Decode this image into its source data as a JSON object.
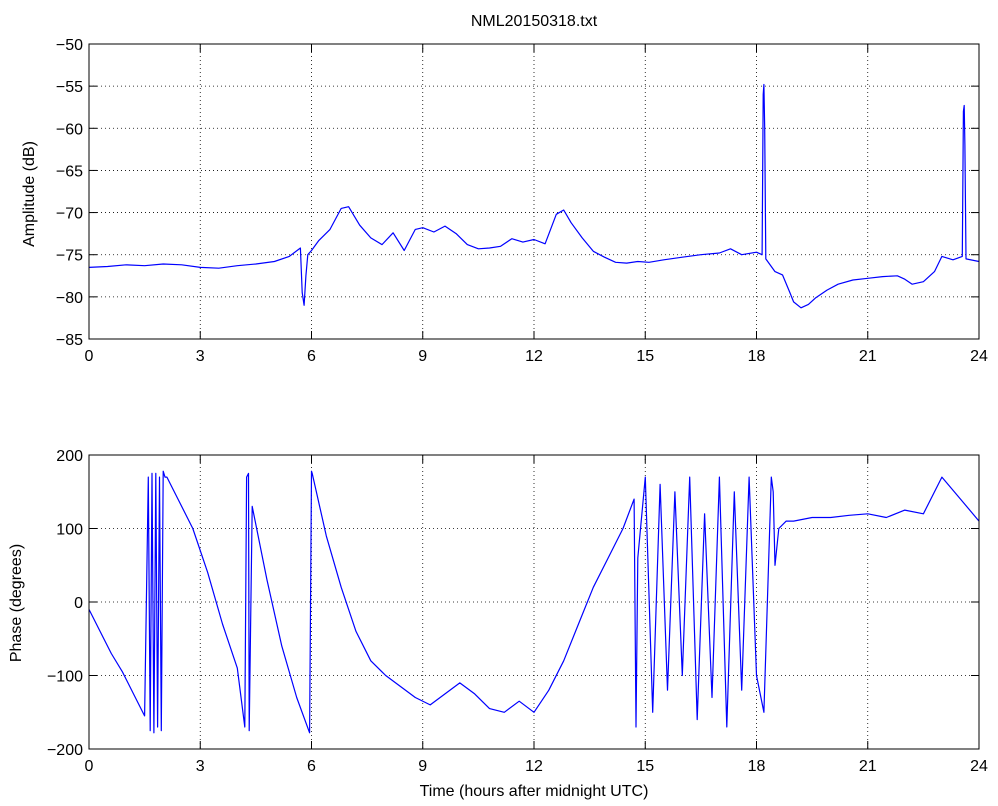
{
  "figure": {
    "title": "NML20150318.txt"
  },
  "chart_data": [
    {
      "type": "line",
      "title": "NML20150318.txt",
      "xlabel": "",
      "ylabel": "Amplitude (dB)",
      "xlim": [
        0,
        24
      ],
      "ylim": [
        -85,
        -50
      ],
      "xticks": [
        0,
        3,
        6,
        9,
        12,
        15,
        18,
        21,
        24
      ],
      "yticks": [
        -85,
        -80,
        -75,
        -70,
        -65,
        -60,
        -55,
        -50
      ],
      "xtick_labels": [
        "0",
        "3",
        "6",
        "9",
        "12",
        "15",
        "18",
        "21",
        "24"
      ],
      "ytick_labels": [
        "−85",
        "−80",
        "−75",
        "−70",
        "−65",
        "−60",
        "−55",
        "−50"
      ],
      "grid": true,
      "series": [
        {
          "color": "#0000ff",
          "x": [
            0,
            0.5,
            1,
            1.5,
            2,
            2.5,
            3,
            3.5,
            4,
            4.5,
            5,
            5.4,
            5.7,
            5.75,
            5.8,
            5.85,
            5.9,
            6.0,
            6.2,
            6.5,
            6.8,
            7.0,
            7.3,
            7.6,
            7.9,
            8.2,
            8.5,
            8.8,
            9.0,
            9.3,
            9.6,
            9.9,
            10.2,
            10.5,
            10.8,
            11.1,
            11.4,
            11.7,
            12.0,
            12.3,
            12.6,
            12.8,
            13.0,
            13.3,
            13.6,
            13.9,
            14.2,
            14.5,
            14.8,
            15.1,
            15.5,
            16.0,
            16.5,
            17.0,
            17.3,
            17.6,
            18.0,
            18.15,
            18.18,
            18.2,
            18.22,
            18.25,
            18.5,
            18.7,
            18.9,
            19.0,
            19.2,
            19.4,
            19.6,
            19.9,
            20.2,
            20.6,
            21.0,
            21.4,
            21.8,
            22.0,
            22.2,
            22.5,
            22.8,
            23.0,
            23.3,
            23.55,
            23.58,
            23.6,
            23.62,
            23.65,
            24
          ],
          "y": [
            -76.5,
            -76.4,
            -76.2,
            -76.3,
            -76.1,
            -76.2,
            -76.5,
            -76.6,
            -76.3,
            -76.1,
            -75.8,
            -75.2,
            -74.2,
            -79.5,
            -81.0,
            -77.5,
            -75.0,
            -74.5,
            -73.3,
            -72.0,
            -69.5,
            -69.3,
            -71.5,
            -73.0,
            -73.8,
            -72.4,
            -74.5,
            -72.0,
            -71.8,
            -72.3,
            -71.6,
            -72.5,
            -73.8,
            -74.3,
            -74.2,
            -74.0,
            -73.1,
            -73.5,
            -73.2,
            -73.7,
            -70.2,
            -69.7,
            -71.2,
            -73.0,
            -74.6,
            -75.3,
            -75.9,
            -76.0,
            -75.8,
            -75.9,
            -75.6,
            -75.3,
            -75.0,
            -74.8,
            -74.3,
            -75.0,
            -74.7,
            -75.0,
            -56.0,
            -54.8,
            -60.0,
            -75.5,
            -77.0,
            -77.4,
            -79.5,
            -80.6,
            -81.3,
            -80.9,
            -80.1,
            -79.2,
            -78.5,
            -78.0,
            -77.8,
            -77.6,
            -77.5,
            -77.9,
            -78.5,
            -78.2,
            -77.0,
            -75.2,
            -75.6,
            -75.2,
            -58.0,
            -57.3,
            -62.0,
            -75.5,
            -75.8
          ]
        }
      ]
    },
    {
      "type": "line",
      "title": "",
      "xlabel": "Time (hours after midnight UTC)",
      "ylabel": "Phase (degrees)",
      "xlim": [
        0,
        24
      ],
      "ylim": [
        -200,
        200
      ],
      "xticks": [
        0,
        3,
        6,
        9,
        12,
        15,
        18,
        21,
        24
      ],
      "yticks": [
        -200,
        -100,
        0,
        100,
        200
      ],
      "xtick_labels": [
        "0",
        "3",
        "6",
        "9",
        "12",
        "15",
        "18",
        "21",
        "24"
      ],
      "ytick_labels": [
        "−200",
        "−100",
        "0",
        "100",
        "200"
      ],
      "grid": true,
      "series": [
        {
          "color": "#0000ff",
          "x": [
            0,
            0.3,
            0.6,
            0.9,
            1.2,
            1.5,
            1.6,
            1.65,
            1.7,
            1.75,
            1.8,
            1.85,
            1.9,
            1.95,
            2.0,
            2.05,
            2.1,
            2.4,
            2.8,
            3.2,
            3.6,
            4.0,
            4.2,
            4.25,
            4.3,
            4.32,
            4.4,
            4.8,
            5.2,
            5.6,
            5.95,
            6.0,
            6.02,
            6.4,
            6.8,
            7.2,
            7.6,
            8.0,
            8.4,
            8.8,
            9.2,
            9.6,
            10.0,
            10.4,
            10.8,
            11.2,
            11.6,
            12.0,
            12.4,
            12.8,
            13.2,
            13.6,
            14.0,
            14.4,
            14.7,
            14.75,
            14.8,
            15.0,
            15.2,
            15.4,
            15.6,
            15.8,
            16.0,
            16.2,
            16.4,
            16.6,
            16.8,
            17.0,
            17.2,
            17.4,
            17.6,
            17.8,
            18.0,
            18.2,
            18.4,
            18.45,
            18.5,
            18.6,
            18.8,
            19.0,
            19.5,
            20.0,
            20.5,
            21.0,
            21.5,
            22.0,
            22.5,
            23.0,
            23.5,
            24
          ],
          "y": [
            -10,
            -40,
            -70,
            -95,
            -125,
            -155,
            170,
            -175,
            175,
            -178,
            175,
            -170,
            170,
            -175,
            178,
            170,
            170,
            140,
            100,
            40,
            -30,
            -90,
            -170,
            170,
            175,
            -175,
            130,
            30,
            -60,
            -130,
            -178,
            178,
            175,
            90,
            20,
            -40,
            -80,
            -100,
            -115,
            -130,
            -140,
            -125,
            -110,
            -125,
            -145,
            -150,
            -135,
            -150,
            -120,
            -80,
            -30,
            20,
            60,
            100,
            140,
            -170,
            60,
            170,
            -150,
            160,
            -120,
            150,
            -100,
            170,
            -160,
            120,
            -130,
            170,
            -170,
            150,
            -120,
            170,
            -100,
            -150,
            170,
            150,
            50,
            100,
            110,
            110,
            115,
            115,
            118,
            120,
            115,
            125,
            120,
            170,
            140,
            110
          ]
        }
      ]
    }
  ]
}
